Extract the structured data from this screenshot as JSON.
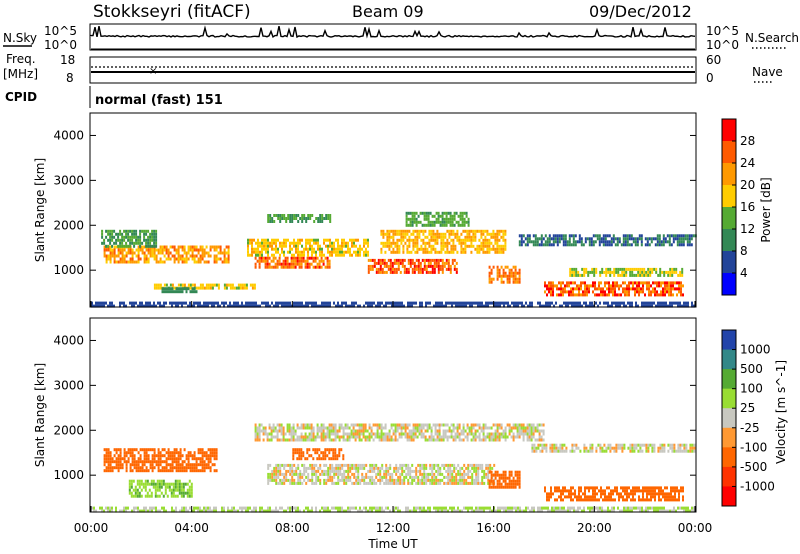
{
  "header": {
    "station": "Stokkseyri (fitACF)",
    "beam": "Beam 09",
    "date": "09/Dec/2012"
  },
  "nsky_panel": {
    "left_label": "N.Sky",
    "right_label": "N.Search",
    "left_ticks": [
      "10^5",
      "10^0"
    ],
    "right_ticks": [
      "10^5",
      "10^0"
    ]
  },
  "freq_panel": {
    "left_label_line1": "Freq.",
    "left_label_line2": "[MHz]",
    "right_label": "Nave",
    "left_ticks": [
      "18",
      "8"
    ],
    "right_ticks": [
      "60",
      "0"
    ]
  },
  "cpid_panel": {
    "label": "CPID",
    "value": "normal (fast) 151"
  },
  "x_axis": {
    "label": "Time UT",
    "ticks": [
      "00:00",
      "04:00",
      "08:00",
      "12:00",
      "16:00",
      "20:00",
      "00:00"
    ]
  },
  "chart_data": [
    {
      "type": "heatmap",
      "name": "power",
      "ylabel": "Slant Range [km]",
      "xlabel": "",
      "ylim": [
        180,
        4500
      ],
      "xlim_hours": [
        0,
        24
      ],
      "yticks": [
        1000,
        2000,
        3000,
        4000
      ],
      "colorbar": {
        "label": "Power [dB]",
        "ticks": [
          "28",
          "24",
          "20",
          "16",
          "12",
          "8",
          "4"
        ],
        "colors": [
          "#ff0000",
          "#ff5a00",
          "#ff9900",
          "#ffcc00",
          "#55aa33",
          "#338855",
          "#224499",
          "#0000ff"
        ]
      },
      "bands": [
        {
          "t0": 0.5,
          "t1": 5.5,
          "r0": 1150,
          "r1": 1550,
          "value": 22
        },
        {
          "t0": 0.4,
          "t1": 2.6,
          "r0": 1550,
          "r1": 1900,
          "value": 12
        },
        {
          "t0": 2.5,
          "t1": 6.5,
          "r0": 580,
          "r1": 700,
          "value": 18
        },
        {
          "t0": 2.8,
          "t1": 4.2,
          "r0": 500,
          "r1": 620,
          "value": 10
        },
        {
          "t0": 6.5,
          "t1": 9.5,
          "r0": 1050,
          "r1": 1300,
          "value": 25
        },
        {
          "t0": 6.2,
          "t1": 11.0,
          "r0": 1350,
          "r1": 1700,
          "value": 18
        },
        {
          "t0": 7.0,
          "t1": 9.5,
          "r0": 2050,
          "r1": 2250,
          "value": 12
        },
        {
          "t0": 11.0,
          "t1": 14.5,
          "r0": 950,
          "r1": 1250,
          "value": 26
        },
        {
          "t0": 11.5,
          "t1": 16.5,
          "r0": 1400,
          "r1": 1900,
          "value": 20
        },
        {
          "t0": 12.5,
          "t1": 15.0,
          "r0": 2000,
          "r1": 2300,
          "value": 13
        },
        {
          "t0": 15.8,
          "t1": 17.0,
          "r0": 700,
          "r1": 1100,
          "value": 24
        },
        {
          "t0": 18.0,
          "t1": 23.5,
          "r0": 450,
          "r1": 750,
          "value": 26
        },
        {
          "t0": 19.0,
          "t1": 23.5,
          "r0": 850,
          "r1": 1050,
          "value": 16
        },
        {
          "t0": 17.0,
          "t1": 24.0,
          "r0": 1550,
          "r1": 1800,
          "value": 8
        },
        {
          "t0": 0.0,
          "t1": 24.0,
          "r0": 200,
          "r1": 300,
          "value": 6
        }
      ]
    },
    {
      "type": "heatmap",
      "name": "velocity",
      "ylabel": "Slant Range [km]",
      "xlabel": "Time UT",
      "ylim": [
        180,
        4500
      ],
      "xlim_hours": [
        0,
        24
      ],
      "yticks": [
        1000,
        2000,
        3000,
        4000
      ],
      "colorbar": {
        "label": "Velocity [m s^-1]",
        "ticks": [
          "1000",
          "500",
          "100",
          "25",
          "-25",
          "-100",
          "-500",
          "-1000"
        ],
        "colors": [
          "#2244aa",
          "#338888",
          "#55aa33",
          "#99dd33",
          "#c8c8c0",
          "#ff9933",
          "#ff6600",
          "#ff3300",
          "#ff0000"
        ]
      },
      "bands": [
        {
          "t0": 0.5,
          "t1": 5.0,
          "r0": 1100,
          "r1": 1600,
          "value": -300
        },
        {
          "t0": 1.5,
          "t1": 4.0,
          "r0": 550,
          "r1": 900,
          "value": 80
        },
        {
          "t0": 6.5,
          "t1": 18.0,
          "r0": 1750,
          "r1": 2150,
          "value": 0
        },
        {
          "t0": 7.0,
          "t1": 16.0,
          "r0": 800,
          "r1": 1250,
          "value": 0
        },
        {
          "t0": 8.0,
          "t1": 10.0,
          "r0": 1350,
          "r1": 1600,
          "value": -200
        },
        {
          "t0": 15.8,
          "t1": 17.0,
          "r0": 700,
          "r1": 1100,
          "value": -400
        },
        {
          "t0": 18.0,
          "t1": 23.5,
          "r0": 450,
          "r1": 750,
          "value": -400
        },
        {
          "t0": 17.5,
          "t1": 24.0,
          "r0": 1500,
          "r1": 1700,
          "value": 0
        },
        {
          "t0": 0.0,
          "t1": 24.0,
          "r0": 200,
          "r1": 300,
          "value": 30
        }
      ]
    }
  ]
}
